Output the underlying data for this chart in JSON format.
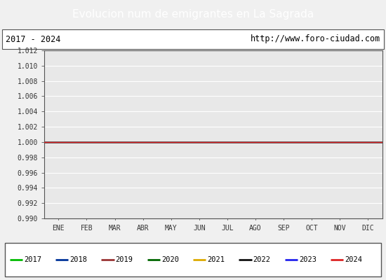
{
  "title": "Evolucion num de emigrantes en La Sagrada",
  "title_bg_color": "#4a86d8",
  "title_text_color": "#ffffff",
  "subtitle_left": "2017 - 2024",
  "subtitle_right": "http://www.foro-ciudad.com",
  "x_labels": [
    "ENE",
    "FEB",
    "MAR",
    "ABR",
    "MAY",
    "JUN",
    "JUL",
    "AGO",
    "SEP",
    "OCT",
    "NOV",
    "DIC"
  ],
  "ylim": [
    0.99,
    1.012
  ],
  "yticks": [
    0.99,
    0.992,
    0.994,
    0.996,
    0.998,
    1.0,
    1.002,
    1.004,
    1.006,
    1.008,
    1.01,
    1.012
  ],
  "years": [
    "2017",
    "2018",
    "2019",
    "2020",
    "2021",
    "2022",
    "2023",
    "2024"
  ],
  "year_colors": [
    "#00bb00",
    "#003399",
    "#993333",
    "#006600",
    "#ddaa00",
    "#111111",
    "#2222ee",
    "#dd2222"
  ],
  "line_value": 1.0,
  "plot_bg_color": "#e8e8e8",
  "grid_color": "#ffffff",
  "fig_bg_color": "#f0f0f0",
  "border_color": "#555555",
  "tick_color": "#333333",
  "font_size_title": 11,
  "font_size_labels": 7,
  "font_size_legend": 7.5
}
